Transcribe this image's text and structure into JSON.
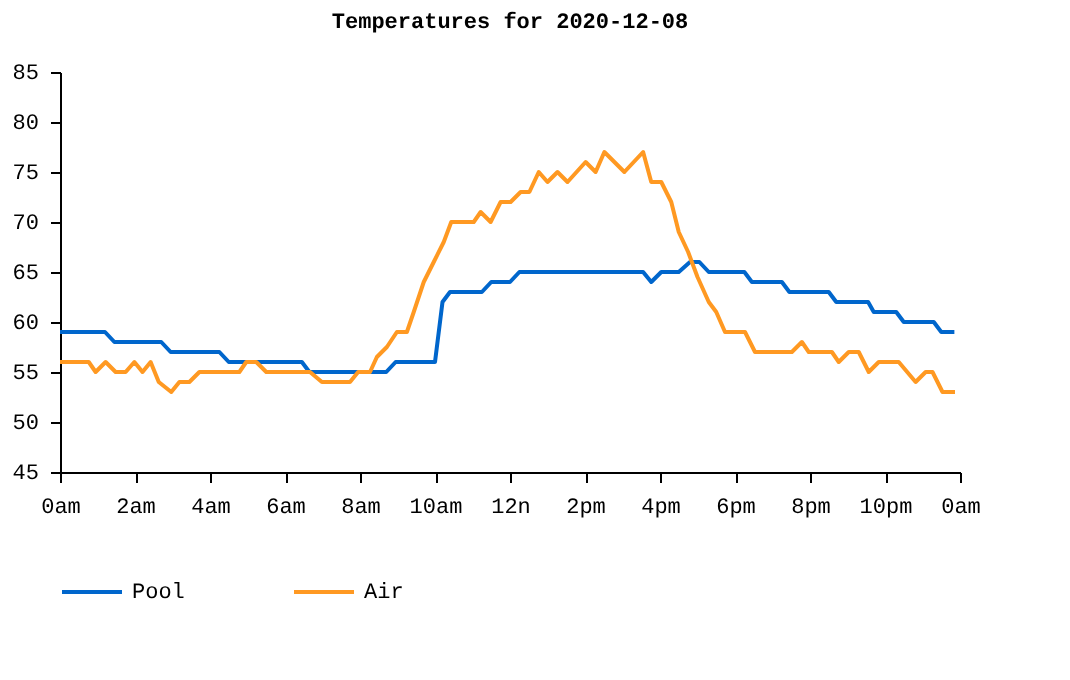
{
  "chart_data": {
    "type": "line",
    "title": "Temperatures for 2020-12-08",
    "xlim": [
      "2020-12-08T00:00",
      "2020-12-09T00:00"
    ],
    "xticks": [
      {
        "value": "2020-12-08T00:00",
        "label": "0am"
      },
      {
        "value": "2020-12-08T02:00",
        "label": "2am"
      },
      {
        "value": "2020-12-08T04:00",
        "label": "4am"
      },
      {
        "value": "2020-12-08T06:00",
        "label": "6am"
      },
      {
        "value": "2020-12-08T08:00",
        "label": "8am"
      },
      {
        "value": "2020-12-08T10:00",
        "label": "10am"
      },
      {
        "value": "2020-12-08T12:00",
        "label": "12n"
      },
      {
        "value": "2020-12-08T14:00",
        "label": "2pm"
      },
      {
        "value": "2020-12-08T16:00",
        "label": "4pm"
      },
      {
        "value": "2020-12-08T18:00",
        "label": "6pm"
      },
      {
        "value": "2020-12-08T20:00",
        "label": "8pm"
      },
      {
        "value": "2020-12-08T22:00",
        "label": "10pm"
      },
      {
        "value": "2020-12-09T00:00",
        "label": "0am"
      }
    ],
    "ylim": [
      45,
      85
    ],
    "yticks": [
      45,
      50,
      55,
      60,
      65,
      70,
      75,
      80,
      85
    ],
    "legend": "bottom",
    "grid": false,
    "marker": "none",
    "line_style": "solid",
    "series": [
      {
        "name": "Pool",
        "color": "#0066cc",
        "x": [
          "2020-12-08T00:00",
          "2020-12-08T01:12",
          "2020-12-08T01:27",
          "2020-12-08T02:42",
          "2020-12-08T02:57",
          "2020-12-08T04:15",
          "2020-12-08T04:30",
          "2020-12-08T06:27",
          "2020-12-08T06:39",
          "2020-12-08T08:42",
          "2020-12-08T08:57",
          "2020-12-08T10:00",
          "2020-12-08T10:12",
          "2020-12-08T10:24",
          "2020-12-08T11:15",
          "2020-12-08T11:30",
          "2020-12-08T12:00",
          "2020-12-08T12:15",
          "2020-12-08T15:33",
          "2020-12-08T15:46",
          "2020-12-08T16:02",
          "2020-12-08T16:30",
          "2020-12-08T16:48",
          "2020-12-08T17:03",
          "2020-12-08T17:18",
          "2020-12-08T18:15",
          "2020-12-08T18:27",
          "2020-12-08T19:15",
          "2020-12-08T19:27",
          "2020-12-08T20:30",
          "2020-12-08T20:42",
          "2020-12-08T21:33",
          "2020-12-08T21:42",
          "2020-12-08T22:18",
          "2020-12-08T22:30",
          "2020-12-08T23:18",
          "2020-12-08T23:30",
          "2020-12-08T23:51"
        ],
        "values": [
          59,
          59,
          58,
          58,
          57,
          57,
          56,
          56,
          55,
          55,
          56,
          56,
          62,
          63,
          63,
          64,
          64,
          65,
          65,
          64,
          65,
          65,
          66,
          66,
          65,
          65,
          64,
          64,
          63,
          63,
          62,
          62,
          61,
          61,
          60,
          60,
          59,
          59
        ]
      },
      {
        "name": "Air",
        "color": "#ff9922",
        "x": [
          "2020-12-08T00:00",
          "2020-12-08T00:46",
          "2020-12-08T00:57",
          "2020-12-08T01:13",
          "2020-12-08T01:29",
          "2020-12-08T01:45",
          "2020-12-08T01:59",
          "2020-12-08T02:12",
          "2020-12-08T02:25",
          "2020-12-08T02:38",
          "2020-12-08T02:58",
          "2020-12-08T03:11",
          "2020-12-08T03:27",
          "2020-12-08T03:43",
          "2020-12-08T04:47",
          "2020-12-08T04:58",
          "2020-12-08T05:14",
          "2020-12-08T05:30",
          "2020-12-08T06:40",
          "2020-12-08T06:59",
          "2020-12-08T07:44",
          "2020-12-08T07:57",
          "2020-12-08T08:16",
          "2020-12-08T08:27",
          "2020-12-08T08:43",
          "2020-12-08T08:59",
          "2020-12-08T09:15",
          "2020-12-08T09:26",
          "2020-12-08T09:42",
          "2020-12-08T09:58",
          "2020-12-08T10:14",
          "2020-12-08T10:26",
          "2020-12-08T11:02",
          "2020-12-08T11:13",
          "2020-12-08T11:29",
          "2020-12-08T11:45",
          "2020-12-08T12:01",
          "2020-12-08T12:17",
          "2020-12-08T12:31",
          "2020-12-08T12:46",
          "2020-12-08T13:00",
          "2020-12-08T13:16",
          "2020-12-08T13:32",
          "2020-12-08T14:01",
          "2020-12-08T14:17",
          "2020-12-08T14:31",
          "2020-12-08T15:03",
          "2020-12-08T15:33",
          "2020-12-08T15:46",
          "2020-12-08T16:02",
          "2020-12-08T16:18",
          "2020-12-08T16:30",
          "2020-12-08T16:45",
          "2020-12-08T17:00",
          "2020-12-08T17:18",
          "2020-12-08T17:30",
          "2020-12-08T17:44",
          "2020-12-08T18:16",
          "2020-12-08T18:32",
          "2020-12-08T19:31",
          "2020-12-08T19:47",
          "2020-12-08T19:58",
          "2020-12-08T20:35",
          "2020-12-08T20:46",
          "2020-12-08T21:02",
          "2020-12-08T21:18",
          "2020-12-08T21:34",
          "2020-12-08T21:50",
          "2020-12-08T22:22",
          "2020-12-08T22:49",
          "2020-12-08T23:05",
          "2020-12-08T23:16",
          "2020-12-08T23:32",
          "2020-12-08T23:52"
        ],
        "values": [
          56,
          56,
          55,
          56,
          55,
          55,
          56,
          55,
          56,
          54,
          53,
          54,
          54,
          55,
          55,
          56,
          56,
          55,
          55,
          54,
          54,
          55,
          55,
          56.5,
          57.5,
          59,
          59,
          61,
          64,
          66,
          68,
          70,
          70,
          71,
          70,
          72,
          72,
          73,
          73,
          75,
          74,
          75,
          74,
          76,
          75,
          77,
          75,
          77,
          74,
          74,
          72,
          69,
          67,
          64.5,
          62,
          61,
          59,
          59,
          57,
          57,
          58,
          57,
          57,
          56,
          57,
          57,
          55,
          56,
          56,
          54,
          55,
          55,
          53,
          53
        ]
      }
    ]
  }
}
